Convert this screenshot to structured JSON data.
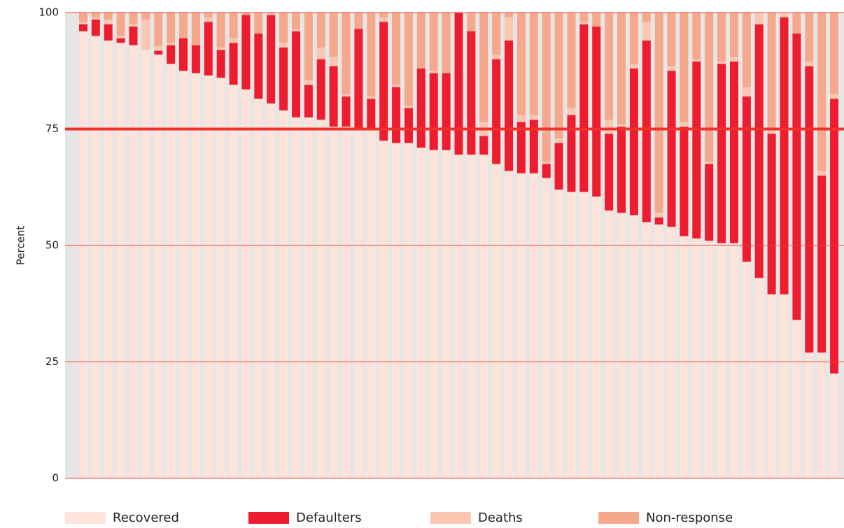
{
  "chart_data": {
    "type": "stacked_bar",
    "y_label": "Percent",
    "ylim": [
      0,
      100
    ],
    "yticks": [
      0,
      25,
      50,
      75,
      100
    ],
    "grid": true,
    "reference_line": 75,
    "legend": "bottom",
    "categories": [
      null,
      null,
      null,
      null,
      null,
      null,
      null,
      null,
      null,
      null,
      null,
      null,
      null,
      null,
      null,
      null,
      null,
      null,
      null,
      null,
      null,
      null,
      null,
      null,
      null,
      null,
      null,
      null,
      null,
      null,
      null,
      null,
      null,
      null,
      null,
      null,
      null,
      null,
      null,
      null,
      null,
      null,
      null,
      null,
      null,
      null,
      null,
      null,
      null,
      null,
      null,
      null,
      null,
      null,
      null,
      null,
      null,
      null,
      null,
      null,
      null
    ],
    "series": [
      {
        "name": "Recovered",
        "color": "#fde3d9",
        "values": [
          96,
          95,
          94,
          93.5,
          93,
          92,
          91,
          89,
          87.5,
          87,
          86.5,
          86,
          84.5,
          83.5,
          81.5,
          80.5,
          79,
          77.5,
          77.5,
          77,
          75.5,
          75.5,
          75,
          75,
          72.5,
          72,
          72,
          71,
          70.5,
          70.5,
          69.5,
          69.5,
          69.5,
          67.5,
          66,
          65.5,
          65.5,
          64.5,
          62,
          61.5,
          61.5,
          60.5,
          57.5,
          57,
          56.5,
          55,
          54.5,
          54,
          52,
          51.5,
          51,
          50.5,
          50.5,
          46.5,
          43,
          39.5,
          39.5,
          34,
          27,
          27,
          22.5
        ]
      },
      {
        "name": "Defaulters",
        "color": "#ed1c2e",
        "values": [
          1.5,
          3.5,
          3.5,
          1,
          4,
          0,
          0.8,
          4,
          7,
          6,
          11.5,
          6,
          9,
          16,
          14,
          19,
          13.5,
          18.5,
          7,
          13,
          13,
          6.5,
          21.5,
          6.5,
          25.5,
          12,
          7.5,
          17,
          16.5,
          16.5,
          30.5,
          26.5,
          4,
          22.5,
          28,
          11,
          11.5,
          3,
          10,
          16.5,
          36,
          36.5,
          16.5,
          18.5,
          31.5,
          39,
          1.5,
          33.5,
          23.5,
          38,
          16.5,
          38.5,
          39,
          35.5,
          54.5,
          34.5,
          59.5,
          61.5,
          61.5,
          38,
          59
        ]
      },
      {
        "name": "Deaths",
        "color": "#fbc6b2",
        "values": [
          0.5,
          0.5,
          1,
          0.5,
          0.5,
          6.5,
          1,
          0.5,
          0,
          0,
          1,
          0.5,
          1,
          0,
          0,
          0.5,
          1,
          0.5,
          1,
          2.5,
          2,
          0.5,
          0,
          0.5,
          1,
          0.5,
          0.5,
          0,
          0.5,
          0,
          0,
          0,
          3,
          1,
          5,
          1.5,
          1,
          0.5,
          1,
          1.5,
          0.5,
          0,
          3,
          0.5,
          1,
          4,
          1,
          1,
          1,
          0.5,
          0.5,
          0.5,
          1,
          2,
          2.5,
          1,
          1,
          0,
          1,
          1,
          1
        ]
      },
      {
        "name": "Non-response",
        "color": "#f6a88c",
        "values": [
          2,
          1,
          1.5,
          5,
          2.5,
          1.5,
          7.2,
          6.5,
          5.5,
          7,
          1,
          7.5,
          5.5,
          0.5,
          4.5,
          0,
          6.5,
          3.5,
          14.5,
          7.5,
          9.5,
          17.5,
          3.5,
          18,
          1,
          15.5,
          20,
          12,
          12.5,
          13,
          0,
          4,
          23.5,
          9,
          1,
          22,
          22,
          32,
          27,
          20.5,
          2,
          3,
          23,
          24,
          11,
          2,
          43,
          11.5,
          23.5,
          10,
          32,
          10.5,
          9.5,
          16,
          0,
          25,
          0,
          4.5,
          10.5,
          34,
          17.5
        ]
      }
    ]
  }
}
